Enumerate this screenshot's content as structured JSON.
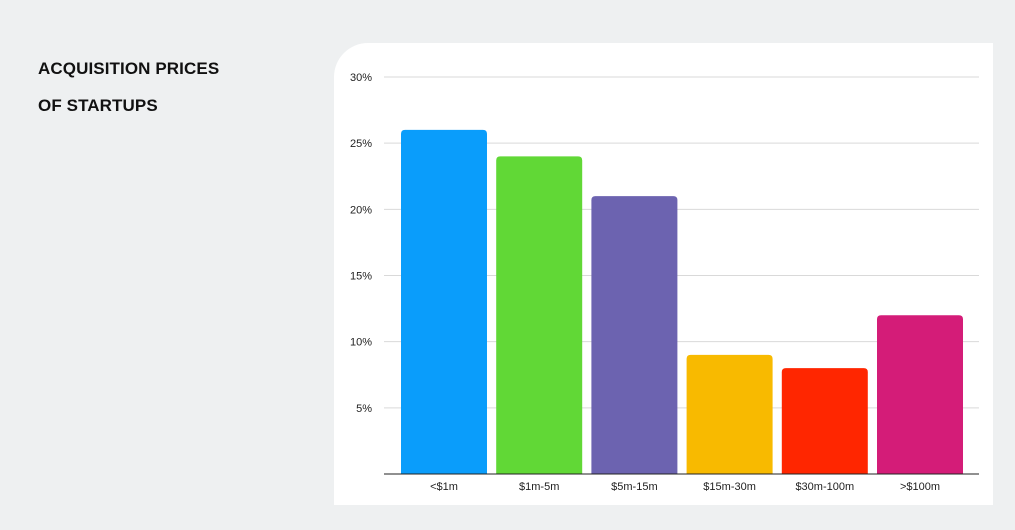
{
  "title_lines": [
    "ACQUISITION PRICES",
    "OF STARTUPS"
  ],
  "chart_data": {
    "type": "bar",
    "title": "ACQUISITION PRICES OF STARTUPS",
    "xlabel": "",
    "ylabel": "",
    "categories": [
      "<$1m",
      "$1m-5m",
      "$5m-15m",
      "$15m-30m",
      "$30m-100m",
      ">$100m"
    ],
    "values": [
      26,
      24,
      21,
      9,
      8,
      12
    ],
    "colors": [
      "#0a9dfb",
      "#61d836",
      "#6c63b0",
      "#f8ba00",
      "#ff2600",
      "#d41c78"
    ],
    "ylim": [
      0,
      30
    ],
    "yticks": [
      5,
      10,
      15,
      20,
      25,
      30
    ],
    "ytick_suffix": "%",
    "grid": true,
    "legend": "none"
  }
}
